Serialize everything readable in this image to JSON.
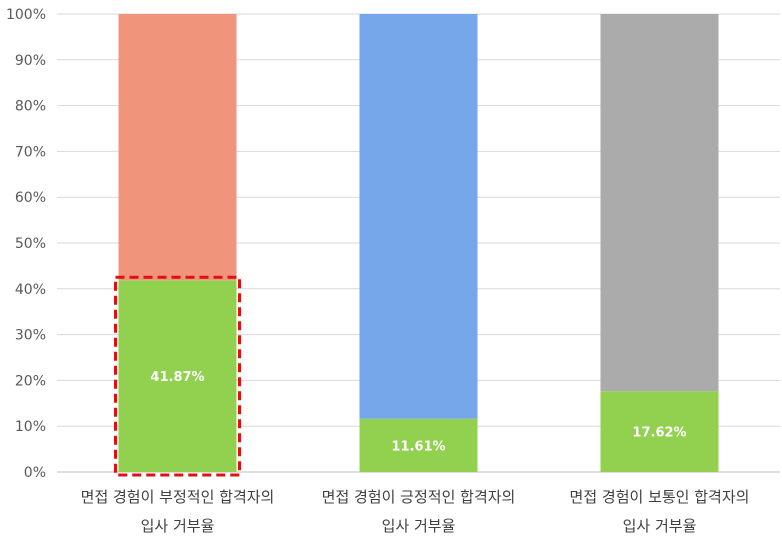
{
  "chart_data": {
    "type": "bar",
    "stacked": true,
    "percent_stacked": true,
    "categories": [
      [
        "면접 경험이 부정적인 합격자의",
        "입사 거부율"
      ],
      [
        "면접 경험이 긍정적인 합격자의",
        "입사 거부율"
      ],
      [
        "면접 경험이 보통인 합격자의",
        "입사 거부율"
      ]
    ],
    "series": [
      {
        "values": [
          41.87,
          11.61,
          17.62
        ],
        "colors": [
          "#92d050",
          "#92d050",
          "#92d050"
        ]
      },
      {
        "values": [
          58.13,
          88.39,
          82.38
        ],
        "colors": [
          "#f0957c",
          "#75a7ea",
          "#ababab"
        ]
      }
    ],
    "data_labels": [
      "41.87%",
      "11.61%",
      "17.62%"
    ],
    "yticks": [
      "0%",
      "10%",
      "20%",
      "30%",
      "40%",
      "50%",
      "60%",
      "70%",
      "80%",
      "90%",
      "100%"
    ],
    "ylim": [
      0,
      100
    ],
    "grid": true,
    "legend": "none",
    "highlight": {
      "category_index": 0,
      "style": "red dashed box",
      "color": "#e01010"
    }
  }
}
